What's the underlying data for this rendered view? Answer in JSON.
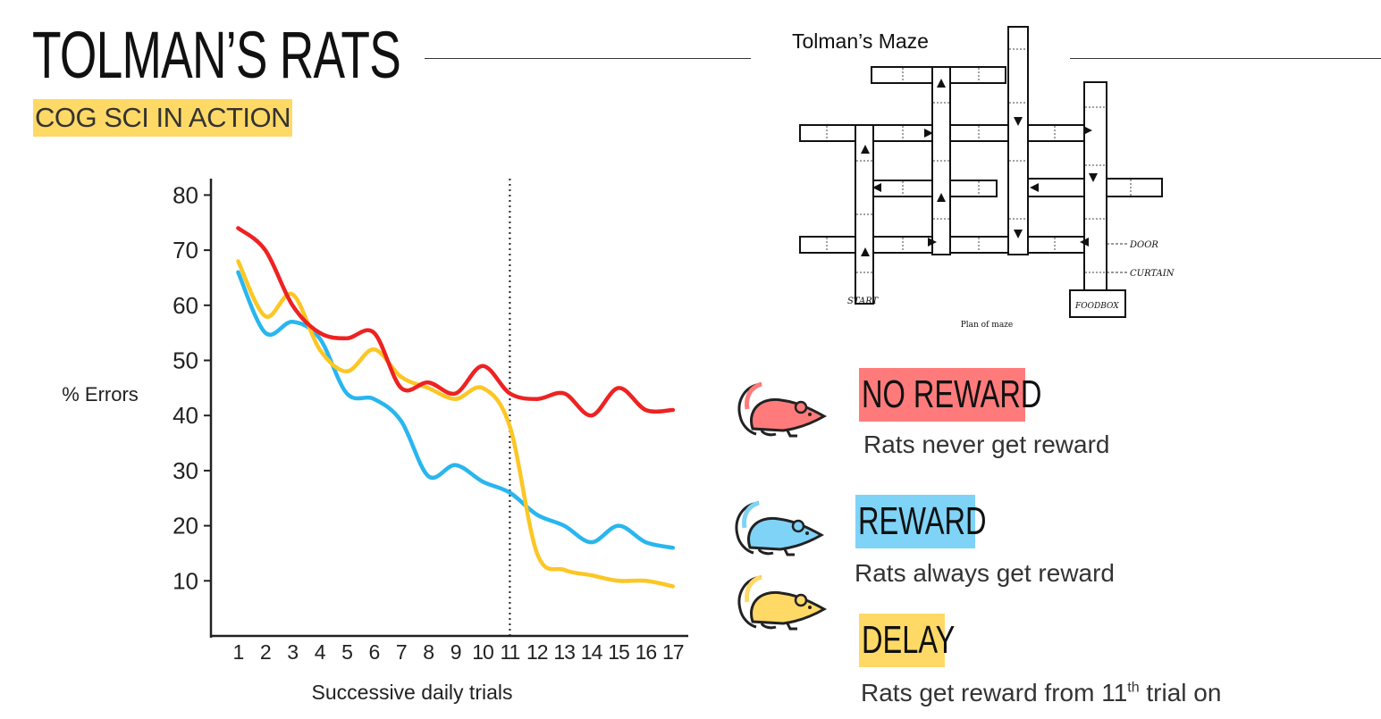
{
  "header": {
    "title": "TOLMAN’S RATS",
    "subtitle": "COG SCI IN ACTION"
  },
  "maze": {
    "title": "Tolman’s Maze",
    "labels": {
      "start": "START",
      "door": "DOOR",
      "curtain": "CURTAIN",
      "foodbox": "FOODBOX",
      "caption": "Plan of maze"
    }
  },
  "legend": [
    {
      "label": "NO REWARD",
      "description": "Rats never get reward",
      "color": "#ff7b7b",
      "icon": "rat-icon"
    },
    {
      "label": "REWARD",
      "description": "Rats always get reward",
      "color": "#7fd3f7",
      "icon": "rat-icon"
    },
    {
      "label": "DELAY",
      "description_prefix": "Rats get reward from 11",
      "description_sup": "th",
      "description_suffix": " trial on",
      "color": "#ffd966",
      "icon": "rat-icon"
    }
  ],
  "chart_data": {
    "type": "line",
    "xlabel": "Successive daily trials",
    "ylabel": "% Errors",
    "x": [
      1,
      2,
      3,
      4,
      5,
      6,
      7,
      8,
      9,
      10,
      11,
      12,
      13,
      14,
      15,
      16,
      17
    ],
    "yticks": [
      10,
      20,
      30,
      40,
      50,
      60,
      70,
      80
    ],
    "ylim": [
      0,
      80
    ],
    "xlim": [
      0,
      17
    ],
    "vline_x": 11,
    "series": [
      {
        "name": "NO REWARD",
        "color": "#ee2222",
        "values": [
          74,
          70,
          60,
          55,
          54,
          55,
          45,
          46,
          44,
          49,
          44,
          43,
          44,
          40,
          45,
          41,
          41
        ]
      },
      {
        "name": "REWARD",
        "color": "#29b6ef",
        "values": [
          66,
          55,
          57,
          54,
          44,
          43,
          39,
          29,
          31,
          28,
          26,
          22,
          20,
          17,
          20,
          17,
          16
        ]
      },
      {
        "name": "DELAY",
        "color": "#fcc624",
        "values": [
          68,
          58,
          62,
          52,
          48,
          52,
          47,
          45,
          43,
          45,
          38,
          15,
          12,
          11,
          10,
          10,
          9
        ]
      }
    ]
  }
}
